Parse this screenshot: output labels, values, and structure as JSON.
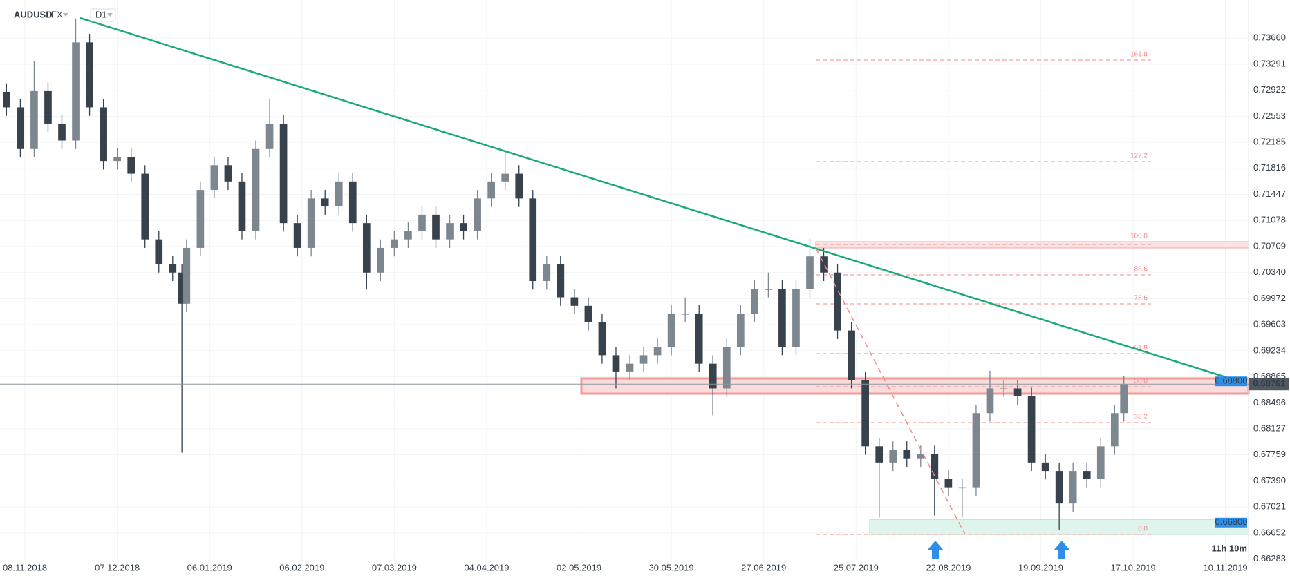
{
  "header": {
    "symbol": "AUDUSD",
    "market": "FX",
    "timeframe": "D1",
    "timer": "11h 10m"
  },
  "chart_data": {
    "type": "candlestick",
    "x": [
      -4,
      -1,
      2,
      5,
      8,
      11,
      14,
      17,
      20,
      23,
      26,
      29,
      32,
      34,
      35,
      38,
      41,
      44,
      47,
      50,
      53,
      56,
      59,
      62,
      65,
      68,
      71,
      74,
      77,
      80,
      83,
      86,
      89,
      92,
      95,
      98,
      101,
      104,
      107,
      110,
      113,
      116,
      119,
      122,
      125,
      128,
      131,
      134,
      137,
      140,
      143,
      146,
      149,
      152,
      155,
      158,
      161,
      164,
      167,
      170,
      173,
      176,
      179,
      182,
      185,
      188,
      191,
      194,
      197,
      200,
      203,
      206,
      209,
      212,
      215,
      218,
      221,
      224,
      227,
      230,
      233,
      236,
      238
    ],
    "open": [
      0.729,
      0.7268,
      0.7209,
      0.7291,
      0.7245,
      0.7221,
      0.736,
      0.7268,
      0.7192,
      0.7198,
      0.7174,
      0.7081,
      0.7046,
      0.7034,
      0.699,
      0.7069,
      0.7151,
      0.7186,
      0.7163,
      0.7093,
      0.7209,
      0.7245,
      0.7104,
      0.7069,
      0.7139,
      0.7128,
      0.7163,
      0.7104,
      0.7034,
      0.7069,
      0.7081,
      0.7093,
      0.7116,
      0.7081,
      0.7104,
      0.7093,
      0.7139,
      0.7163,
      0.7174,
      0.7139,
      0.7022,
      0.7046,
      0.6999,
      0.6987,
      0.6964,
      0.6917,
      0.6894,
      0.6905,
      0.6917,
      0.6929,
      0.6976,
      0.6976,
      0.6905,
      0.687,
      0.6929,
      0.6976,
      0.7011,
      0.7011,
      0.6929,
      0.7011,
      0.7057,
      0.7034,
      0.6952,
      0.6882,
      0.6788,
      0.6765,
      0.6783,
      0.6771,
      0.6777,
      0.6742,
      0.673,
      0.673,
      0.6835,
      0.687,
      0.687,
      0.6859,
      0.6765,
      0.6753,
      0.6707,
      0.6753,
      0.6742,
      0.6788,
      0.6835
    ],
    "high": [
      0.7302,
      0.728,
      0.7334,
      0.7303,
      0.7257,
      0.7394,
      0.7372,
      0.728,
      0.721,
      0.721,
      0.7186,
      0.7093,
      0.7058,
      0.7046,
      0.7081,
      0.7163,
      0.7198,
      0.7198,
      0.7175,
      0.7221,
      0.728,
      0.7257,
      0.7116,
      0.7151,
      0.7151,
      0.7175,
      0.7175,
      0.7116,
      0.7081,
      0.7093,
      0.7105,
      0.7128,
      0.7128,
      0.7116,
      0.7116,
      0.7151,
      0.7175,
      0.7208,
      0.7186,
      0.7151,
      0.7058,
      0.7058,
      0.7011,
      0.6999,
      0.6976,
      0.6929,
      0.6917,
      0.6929,
      0.6941,
      0.6988,
      0.6999,
      0.6988,
      0.6917,
      0.6941,
      0.6988,
      0.7023,
      0.7034,
      0.7023,
      0.7023,
      0.7082,
      0.7069,
      0.7046,
      0.6964,
      0.6894,
      0.68,
      0.6795,
      0.6795,
      0.6789,
      0.6789,
      0.6754,
      0.6742,
      0.6847,
      0.6895,
      0.6882,
      0.6882,
      0.6871,
      0.6777,
      0.6765,
      0.6765,
      0.6765,
      0.68,
      0.6847,
      0.6888
    ],
    "low": [
      0.7256,
      0.7197,
      0.7197,
      0.7233,
      0.7209,
      0.7209,
      0.7256,
      0.718,
      0.718,
      0.7162,
      0.7069,
      0.7034,
      0.7022,
      0.6779,
      0.6978,
      0.7057,
      0.7139,
      0.7151,
      0.7081,
      0.7081,
      0.7197,
      0.7092,
      0.7057,
      0.7057,
      0.7116,
      0.7116,
      0.7092,
      0.701,
      0.7022,
      0.7057,
      0.7069,
      0.7081,
      0.7069,
      0.7069,
      0.7081,
      0.7081,
      0.7127,
      0.7151,
      0.7127,
      0.701,
      0.701,
      0.6987,
      0.6975,
      0.6952,
      0.6905,
      0.687,
      0.6882,
      0.6893,
      0.6905,
      0.6917,
      0.6964,
      0.6893,
      0.6832,
      0.6858,
      0.6917,
      0.6964,
      0.6999,
      0.6917,
      0.6917,
      0.6999,
      0.7022,
      0.694,
      0.687,
      0.6776,
      0.6687,
      0.6753,
      0.6759,
      0.6759,
      0.669,
      0.6718,
      0.6688,
      0.6718,
      0.6823,
      0.6858,
      0.6847,
      0.6753,
      0.6741,
      0.667,
      0.6695,
      0.673,
      0.673,
      0.6776,
      0.6823
    ],
    "close": [
      0.7268,
      0.7209,
      0.7291,
      0.7245,
      0.7221,
      0.736,
      0.7268,
      0.7192,
      0.7198,
      0.7174,
      0.7081,
      0.7046,
      0.7034,
      0.699,
      0.7069,
      0.7151,
      0.7186,
      0.7163,
      0.7093,
      0.7209,
      0.7245,
      0.7104,
      0.7069,
      0.7139,
      0.7128,
      0.7163,
      0.7104,
      0.7034,
      0.7069,
      0.7081,
      0.7093,
      0.7116,
      0.7081,
      0.7104,
      0.7093,
      0.7139,
      0.7163,
      0.7174,
      0.7139,
      0.7022,
      0.7046,
      0.6999,
      0.6987,
      0.6964,
      0.6917,
      0.6894,
      0.6905,
      0.6917,
      0.6929,
      0.6976,
      0.6976,
      0.6905,
      0.687,
      0.6929,
      0.6976,
      0.7011,
      0.7011,
      0.6929,
      0.7011,
      0.7057,
      0.7034,
      0.6952,
      0.6882,
      0.6788,
      0.6765,
      0.6783,
      0.6771,
      0.6777,
      0.6742,
      0.673,
      0.673,
      0.6835,
      0.687,
      0.687,
      0.6859,
      0.6765,
      0.6753,
      0.6707,
      0.6753,
      0.6742,
      0.6788,
      0.6835,
      0.6876
    ],
    "up_color": "#7d8790",
    "down_color": "#37424c",
    "xlim": [
      -5.4,
      265
    ],
    "xticks": [
      {
        "value": 0,
        "label": "08.11.2018"
      },
      {
        "value": 20,
        "label": "07.12.2018"
      },
      {
        "value": 40,
        "label": "06.01.2019"
      },
      {
        "value": 60,
        "label": "06.02.2019"
      },
      {
        "value": 80,
        "label": "07.03.2019"
      },
      {
        "value": 100,
        "label": "04.04.2019"
      },
      {
        "value": 120,
        "label": "02.05.2019"
      },
      {
        "value": 140,
        "label": "30.05.2019"
      },
      {
        "value": 160,
        "label": "27.06.2019"
      },
      {
        "value": 180,
        "label": "25.07.2019"
      },
      {
        "value": 200,
        "label": "22.08.2019"
      },
      {
        "value": 220,
        "label": "19.09.2019"
      },
      {
        "value": 240,
        "label": "17.10.2019"
      },
      {
        "value": 260,
        "label": "10.11.2019"
      }
    ],
    "ylim": [
      0.6625,
      0.742
    ],
    "yticks": [
      {
        "value": 0.7366,
        "label": "0.73660"
      },
      0.73291,
      0.72922,
      0.72553,
      0.72185,
      0.71816,
      0.71447,
      0.71078,
      0.70709,
      {
        "value": 0.7034,
        "label": "0.70340"
      },
      0.69972,
      0.69603,
      0.69234,
      0.68865,
      0.68496,
      0.68127,
      0.67759,
      {
        "value": 0.6739,
        "label": "0.67390"
      },
      0.67021,
      0.66652,
      0.66283
    ],
    "grid": true,
    "last_price": 0.68761,
    "price_tags": [
      {
        "value": 0.688,
        "label": "0.68800",
        "color": "#2f8fe8"
      },
      {
        "value": 0.668,
        "label": "0.66800",
        "color": "#2f8fe8"
      }
    ],
    "fib_labels": [
      "161.8",
      "127.2",
      "100.0",
      "88.6",
      "78.6",
      "61.8",
      "50.0",
      "38.2",
      "0.0"
    ]
  }
}
